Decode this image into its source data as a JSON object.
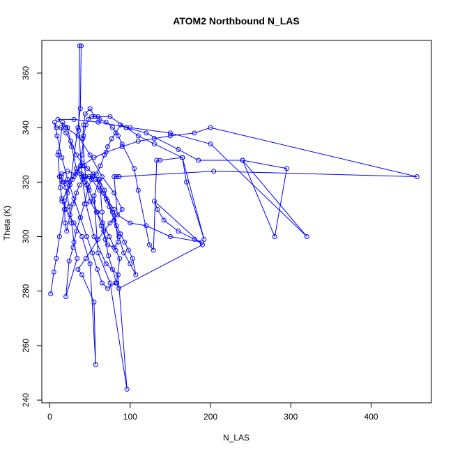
{
  "chart_data": {
    "type": "scatter",
    "mode": "lines+markers",
    "title": "ATOM2 Northbound N_LAS",
    "xlabel": "N_LAS",
    "ylabel": "Theta (K)",
    "xlim": [
      -10,
      475
    ],
    "ylim": [
      239,
      372
    ],
    "xticks": [
      0,
      100,
      200,
      300,
      400
    ],
    "yticks": [
      240,
      260,
      280,
      300,
      320,
      340,
      360
    ],
    "grid": false,
    "legend": "none",
    "color": "#0000ff",
    "series": [
      {
        "points": [
          [
            1,
            279
          ],
          [
            5,
            287
          ],
          [
            8,
            292
          ],
          [
            12,
            300
          ],
          [
            18,
            310
          ],
          [
            22,
            316
          ],
          [
            28,
            321
          ],
          [
            34,
            324
          ],
          [
            38,
            326
          ],
          [
            40,
            330
          ],
          [
            42,
            337
          ],
          [
            45,
            341
          ],
          [
            48,
            343
          ],
          [
            52,
            344
          ],
          [
            60,
            344
          ],
          [
            75,
            344
          ],
          [
            95,
            340
          ],
          [
            120,
            338
          ],
          [
            160,
            332
          ],
          [
            185,
            328
          ],
          [
            240,
            328
          ],
          [
            280,
            300
          ],
          [
            295,
            325
          ],
          [
            240,
            328
          ],
          [
            320,
            300
          ],
          [
            200,
            334
          ],
          [
            150,
            338
          ],
          [
            100,
            340
          ],
          [
            60,
            342
          ],
          [
            30,
            343
          ],
          [
            10,
            343
          ],
          [
            20,
            340
          ],
          [
            35,
            337
          ],
          [
            50,
            330
          ],
          [
            65,
            322
          ],
          [
            80,
            316
          ],
          [
            90,
            310
          ],
          [
            75,
            305
          ],
          [
            60,
            299
          ],
          [
            45,
            292
          ],
          [
            35,
            288
          ],
          [
            40,
            286
          ],
          [
            55,
            276
          ],
          [
            57,
            253
          ],
          [
            50,
            290
          ],
          [
            40,
            300
          ],
          [
            30,
            305
          ],
          [
            20,
            310
          ],
          [
            15,
            313
          ],
          [
            25,
            319
          ],
          [
            35,
            340
          ],
          [
            38,
            347
          ],
          [
            39,
            370
          ],
          [
            37,
            370
          ],
          [
            36,
            339
          ],
          [
            40,
            322
          ],
          [
            45,
            312
          ],
          [
            55,
            300
          ],
          [
            70,
            290
          ],
          [
            85,
            286
          ],
          [
            96,
            244
          ],
          [
            75,
            283
          ],
          [
            60,
            294
          ],
          [
            55,
            315
          ],
          [
            62,
            321
          ],
          [
            65,
            309
          ],
          [
            67,
            302
          ],
          [
            72,
            297
          ],
          [
            80,
            296
          ],
          [
            85,
            298
          ],
          [
            80,
            310
          ],
          [
            70,
            314
          ],
          [
            62,
            317
          ],
          [
            52,
            321
          ],
          [
            42,
            322
          ],
          [
            32,
            323
          ],
          [
            22,
            324
          ],
          [
            15,
            323
          ],
          [
            12,
            322
          ],
          [
            16,
            320
          ],
          [
            20,
            318
          ],
          [
            24,
            311
          ],
          [
            27,
            305
          ],
          [
            30,
            298
          ],
          [
            34,
            292
          ],
          [
            20,
            278
          ],
          [
            24,
            291
          ],
          [
            29,
            296
          ],
          [
            33,
            302
          ],
          [
            38,
            307
          ],
          [
            43,
            312
          ],
          [
            48,
            318
          ],
          [
            53,
            322
          ],
          [
            58,
            323
          ],
          [
            63,
            326
          ],
          [
            68,
            330
          ],
          [
            72,
            333
          ],
          [
            77,
            336
          ],
          [
            82,
            338
          ],
          [
            88,
            341
          ],
          [
            95,
            340
          ],
          [
            110,
            337
          ],
          [
            130,
            334
          ],
          [
            165,
            329
          ],
          [
            192,
            299
          ],
          [
            170,
            320
          ],
          [
            165,
            329
          ],
          [
            137,
            328
          ],
          [
            133,
            328
          ],
          [
            129,
            295
          ],
          [
            124,
            297
          ],
          [
            110,
            317
          ],
          [
            105,
            325
          ],
          [
            90,
            334
          ],
          [
            85,
            337
          ],
          [
            78,
            340
          ],
          [
            70,
            342
          ],
          [
            62,
            343
          ],
          [
            56,
            344
          ],
          [
            50,
            347
          ],
          [
            44,
            345
          ],
          [
            42,
            341
          ],
          [
            41,
            336
          ],
          [
            43,
            326
          ],
          [
            46,
            319
          ],
          [
            50,
            313
          ],
          [
            58,
            309
          ],
          [
            66,
            305
          ],
          [
            74,
            300
          ],
          [
            82,
            295
          ],
          [
            87,
            292
          ],
          [
            83,
            283
          ],
          [
            78,
            288
          ],
          [
            73,
            293
          ],
          [
            69,
            299
          ],
          [
            64,
            304
          ],
          [
            59,
            309
          ],
          [
            54,
            313
          ],
          [
            49,
            317
          ],
          [
            44,
            320
          ],
          [
            39,
            323
          ],
          [
            33,
            325
          ],
          [
            27,
            333
          ],
          [
            22,
            340
          ],
          [
            16,
            342
          ],
          [
            11,
            331
          ],
          [
            10,
            330
          ],
          [
            13,
            318
          ],
          [
            15,
            314
          ],
          [
            18,
            313
          ],
          [
            19,
            305
          ],
          [
            21,
            302
          ],
          [
            25,
            308
          ],
          [
            29,
            312
          ],
          [
            33,
            316
          ],
          [
            37,
            319
          ],
          [
            41,
            321
          ],
          [
            45,
            322
          ],
          [
            49,
            322
          ],
          [
            53,
            322
          ],
          [
            57,
            321
          ],
          [
            62,
            319
          ],
          [
            67,
            316
          ],
          [
            72,
            313
          ],
          [
            78,
            309
          ],
          [
            83,
            304
          ],
          [
            88,
            301
          ],
          [
            93,
            298
          ],
          [
            98,
            295
          ],
          [
            103,
            292
          ],
          [
            107,
            286
          ],
          [
            100,
            290
          ],
          [
            92,
            294
          ],
          [
            86,
            300
          ],
          [
            80,
            306
          ],
          [
            74,
            311
          ],
          [
            68,
            317
          ],
          [
            61,
            321
          ],
          [
            54,
            323
          ],
          [
            47,
            325
          ],
          [
            40,
            327
          ],
          [
            33,
            330
          ],
          [
            26,
            335
          ],
          [
            20,
            338
          ],
          [
            14,
            340
          ],
          [
            8,
            340
          ],
          [
            6,
            342
          ],
          [
            9,
            337
          ],
          [
            15,
            329
          ],
          [
            22,
            321
          ],
          [
            30,
            314
          ],
          [
            38,
            307
          ],
          [
            46,
            300
          ],
          [
            53,
            294
          ],
          [
            59,
            288
          ],
          [
            65,
            283
          ],
          [
            72,
            281
          ],
          [
            82,
            283
          ],
          [
            86,
            281
          ],
          [
            190,
            297
          ],
          [
            130,
            313
          ],
          [
            134,
            310
          ],
          [
            142,
            306
          ],
          [
            160,
            302
          ],
          [
            180,
            299
          ],
          [
            189,
            298
          ],
          [
            150,
            300
          ],
          [
            120,
            304
          ],
          [
            100,
            305
          ],
          [
            84,
            308
          ],
          [
            80,
            322
          ],
          [
            83,
            322
          ],
          [
            86,
            322
          ],
          [
            86,
            322
          ],
          [
            204,
            324
          ],
          [
            457,
            322
          ],
          [
            200,
            340
          ],
          [
            180,
            338
          ],
          [
            150,
            337
          ],
          [
            130,
            336
          ],
          [
            110,
            335
          ],
          [
            90,
            333
          ],
          [
            70,
            331
          ],
          [
            55,
            329
          ],
          [
            40,
            326
          ],
          [
            30,
            322
          ],
          [
            22,
            320
          ],
          [
            17,
            320
          ],
          [
            14,
            322
          ]
        ]
      }
    ]
  }
}
